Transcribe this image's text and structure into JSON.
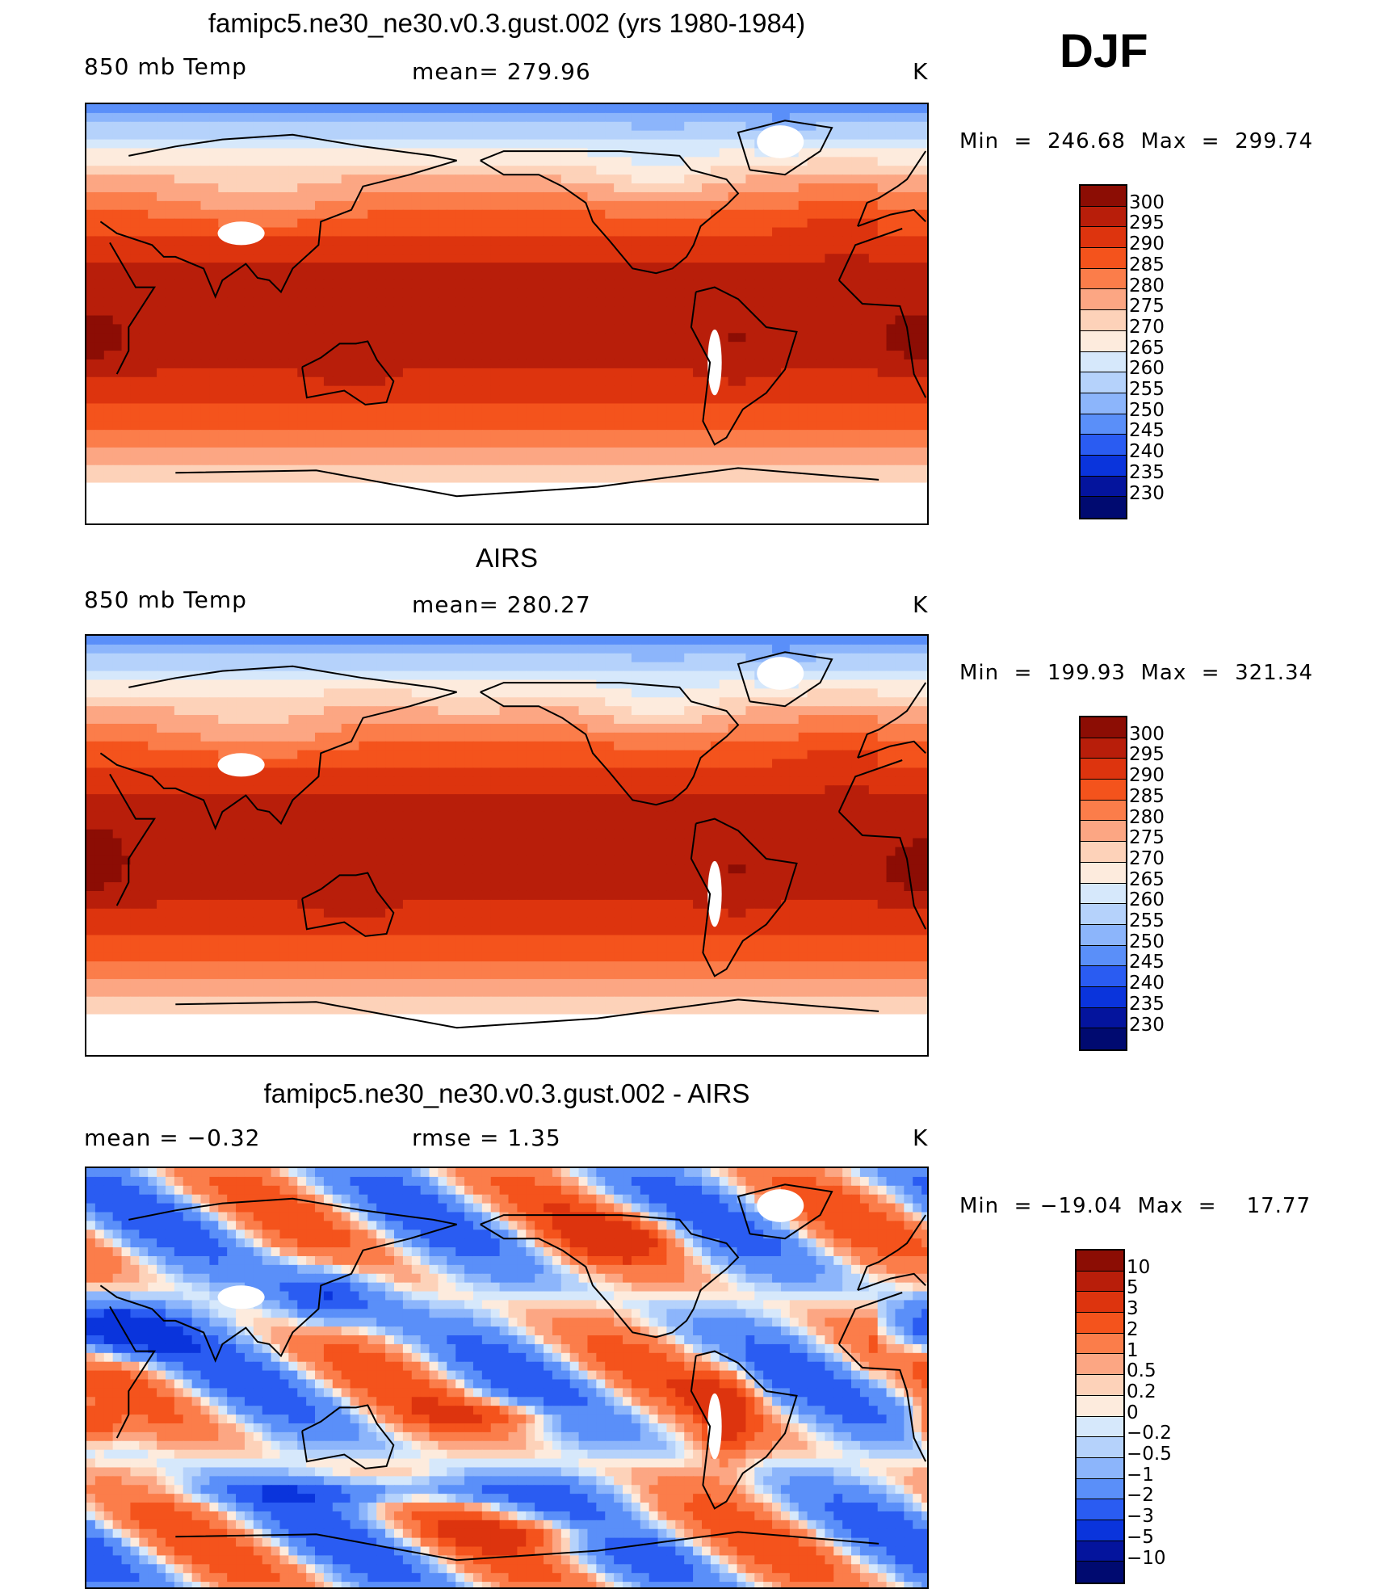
{
  "season": "DJF",
  "panels": [
    {
      "id": "model",
      "title": "famipc5.ne30_ne30.v0.3.gust.002 (yrs 1980-1984)",
      "left_label": "850 mb Temp",
      "center_label": "mean= 279.96",
      "units": "K",
      "minmax": "Min  =  246.68  Max  =  299.74"
    },
    {
      "id": "obs",
      "title": "AIRS",
      "left_label": "850 mb Temp",
      "center_label": "mean= 280.27",
      "units": "K",
      "minmax": "Min  =  199.93  Max  =  321.34"
    },
    {
      "id": "diff",
      "title": "famipc5.ne30_ne30.v0.3.gust.002 - AIRS",
      "left_label": "mean =    −0.32",
      "center_label": "rmse =     1.35",
      "units": "K",
      "minmax": "Min  = −19.04  Max  =    17.77"
    }
  ],
  "chart_data": [
    {
      "type": "heatmap",
      "title": "famipc5.ne30_ne30.v0.3.gust.002 (yrs 1980-1984)",
      "variable": "850 mb Temp",
      "units": "K",
      "mean": 279.96,
      "min": 246.68,
      "max": 299.74,
      "colorbar_levels": [
        "300",
        "295",
        "290",
        "285",
        "280",
        "275",
        "270",
        "265",
        "260",
        "255",
        "250",
        "245",
        "240",
        "235",
        "230"
      ],
      "colors": [
        "#8c0d04",
        "#b81e0a",
        "#dd340e",
        "#f4531c",
        "#fb7d4a",
        "#fca683",
        "#fdd2b9",
        "#fdebdd",
        "#d6e8fb",
        "#b5d2fb",
        "#8cb5fb",
        "#5a8ff9",
        "#2a5cf2",
        "#0a34dc",
        "#04149d",
        "#000a70"
      ]
    },
    {
      "type": "heatmap",
      "title": "AIRS",
      "variable": "850 mb Temp",
      "units": "K",
      "mean": 280.27,
      "min": 199.93,
      "max": 321.34,
      "colorbar_levels": [
        "300",
        "295",
        "290",
        "285",
        "280",
        "275",
        "270",
        "265",
        "260",
        "255",
        "250",
        "245",
        "240",
        "235",
        "230"
      ],
      "colors": [
        "#8c0d04",
        "#b81e0a",
        "#dd340e",
        "#f4531c",
        "#fb7d4a",
        "#fca683",
        "#fdd2b9",
        "#fdebdd",
        "#d6e8fb",
        "#b5d2fb",
        "#8cb5fb",
        "#5a8ff9",
        "#2a5cf2",
        "#0a34dc",
        "#04149d",
        "#000a70"
      ]
    },
    {
      "type": "heatmap",
      "title": "famipc5.ne30_ne30.v0.3.gust.002 - AIRS",
      "units": "K",
      "mean": -0.32,
      "rmse": 1.35,
      "min": -19.04,
      "max": 17.77,
      "colorbar_levels": [
        "10",
        "5",
        "3",
        "2",
        "1",
        "0.5",
        "0.2",
        "0",
        "−0.2",
        "−0.5",
        "−1",
        "−2",
        "−3",
        "−5",
        "−10"
      ],
      "colors": [
        "#8c0d04",
        "#b81e0a",
        "#dd340e",
        "#f4531c",
        "#fb7d4a",
        "#fca683",
        "#fdd2b9",
        "#fdebdd",
        "#d6e8fb",
        "#b5d2fb",
        "#8cb5fb",
        "#5a8ff9",
        "#2a5cf2",
        "#0a34dc",
        "#04149d",
        "#000a70"
      ]
    }
  ]
}
